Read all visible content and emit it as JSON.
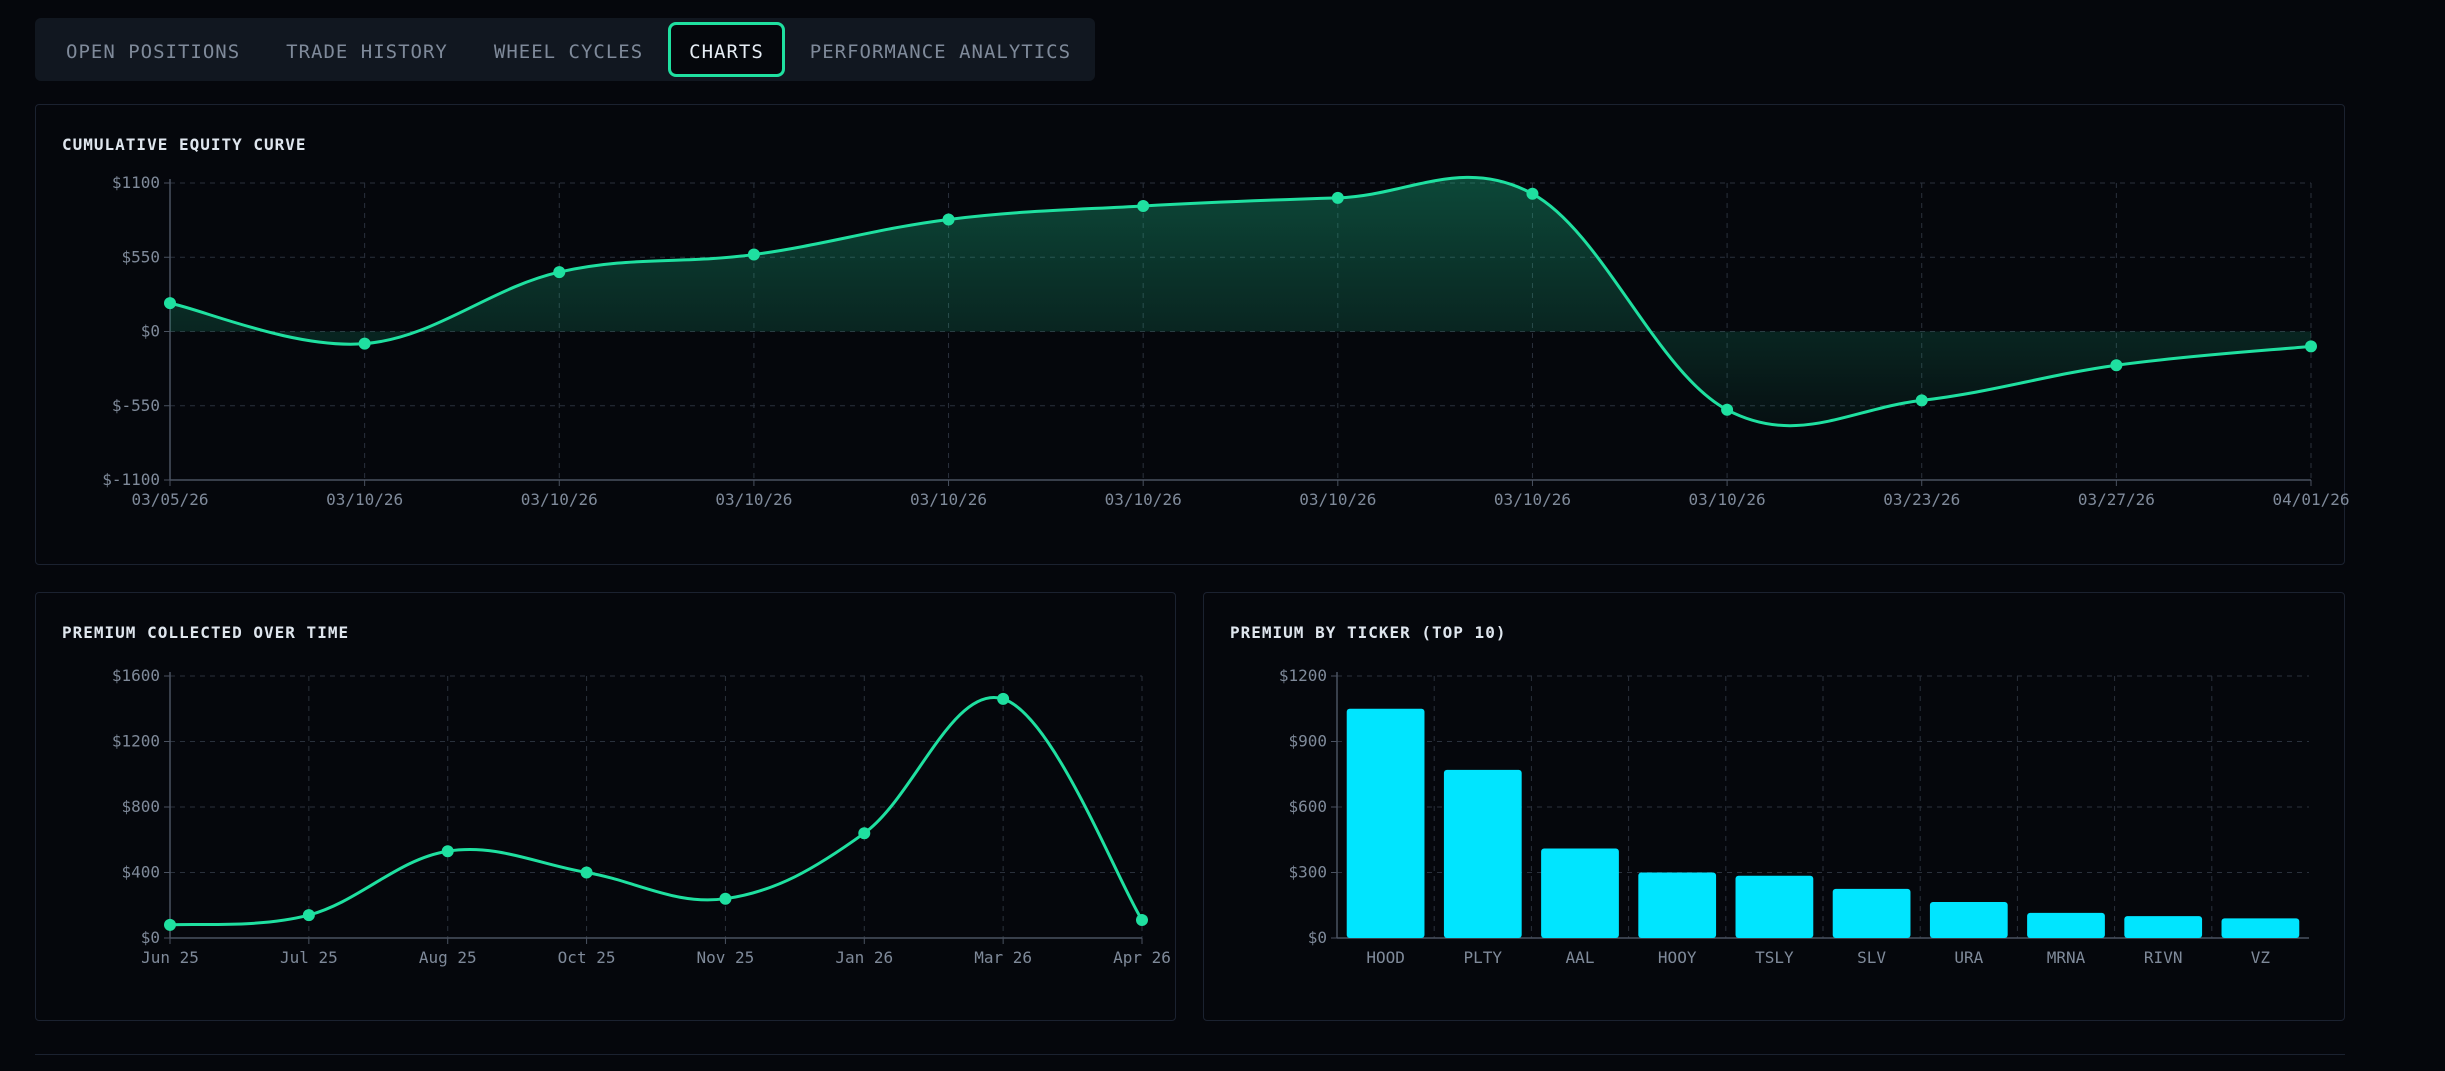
{
  "tabs": [
    {
      "label": "OPEN POSITIONS",
      "active": false
    },
    {
      "label": "TRADE HISTORY",
      "active": false
    },
    {
      "label": "WHEEL CYCLES",
      "active": false
    },
    {
      "label": "CHARTS",
      "active": true
    },
    {
      "label": "PERFORMANCE ANALYTICS",
      "active": false
    }
  ],
  "colors": {
    "accent": "#1fe0a0",
    "bar": "#00e5ff",
    "grid": "#2a313c",
    "tick": "#7f8a9a"
  },
  "chart_data": [
    {
      "id": "equity",
      "type": "area",
      "title": "CUMULATIVE EQUITY CURVE",
      "xlabel": "",
      "ylabel": "",
      "x": [
        "03/05/26",
        "03/10/26",
        "03/10/26",
        "03/10/26",
        "03/10/26",
        "03/10/26",
        "03/10/26",
        "03/10/26",
        "03/10/26",
        "03/23/26",
        "03/27/26",
        "04/01/26"
      ],
      "values": [
        210,
        -90,
        440,
        570,
        830,
        930,
        990,
        1020,
        -580,
        -510,
        -250,
        -110
      ],
      "yticks": [
        "$1100",
        "$550",
        "$0",
        "$-550",
        "$-1100"
      ],
      "ylim": [
        -1100,
        1100
      ],
      "grid": true
    },
    {
      "id": "premium_time",
      "type": "line",
      "title": "PREMIUM COLLECTED OVER TIME",
      "xlabel": "",
      "ylabel": "",
      "x": [
        "Jun 25",
        "Jul 25",
        "Aug 25",
        "Oct 25",
        "Nov 25",
        "Jan 26",
        "Mar 26",
        "Apr 26"
      ],
      "values": [
        80,
        140,
        530,
        400,
        240,
        640,
        1460,
        110
      ],
      "yticks": [
        "$1600",
        "$1200",
        "$800",
        "$400",
        "$0"
      ],
      "ylim": [
        0,
        1600
      ],
      "grid": true
    },
    {
      "id": "premium_ticker",
      "type": "bar",
      "title": "PREMIUM BY TICKER (TOP 10)",
      "xlabel": "",
      "ylabel": "",
      "categories": [
        "HOOD",
        "PLTY",
        "AAL",
        "HOOY",
        "TSLY",
        "SLV",
        "URA",
        "MRNA",
        "RIVN",
        "VZ"
      ],
      "values": [
        1050,
        770,
        410,
        300,
        285,
        225,
        165,
        115,
        100,
        90
      ],
      "yticks": [
        "$1200",
        "$900",
        "$600",
        "$300",
        "$0"
      ],
      "ylim": [
        0,
        1200
      ],
      "grid": true
    }
  ]
}
